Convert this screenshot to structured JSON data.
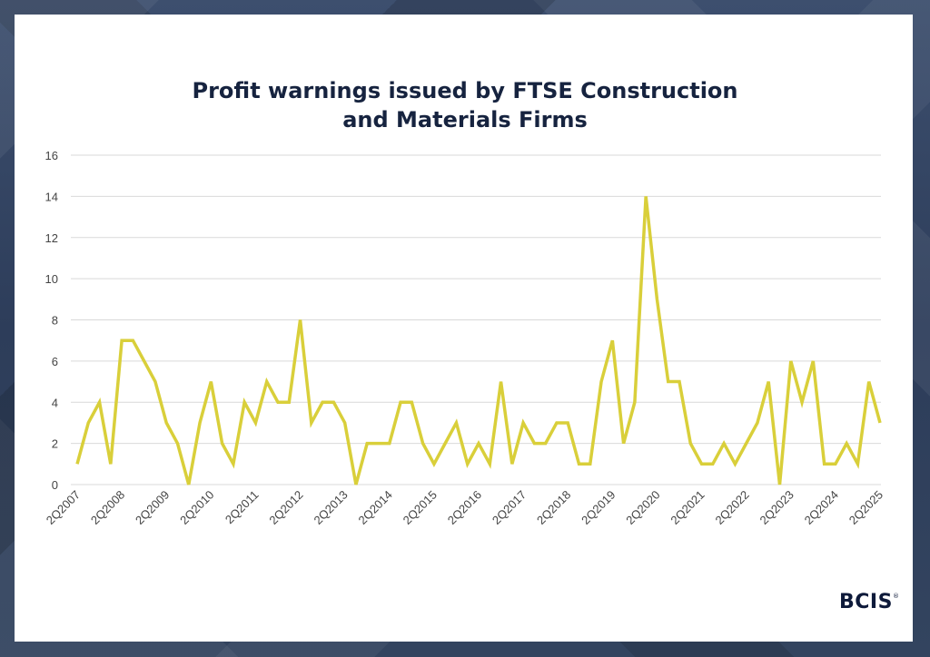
{
  "brand": {
    "logo_text": "BCIS",
    "logo_mark": "®"
  },
  "colors": {
    "line": "#d9cf3a",
    "grid": "#d9d9d9",
    "title": "#16233f",
    "card": "#ffffff"
  },
  "chart_data": {
    "type": "line",
    "title_line1": "Profit warnings issued by FTSE Construction",
    "title_line2": "and Materials Firms",
    "xlabel": "",
    "ylabel": "",
    "ylim": [
      0,
      16
    ],
    "yticks": [
      0,
      2,
      4,
      6,
      8,
      10,
      12,
      14,
      16
    ],
    "grid": true,
    "x_tick_labels": [
      "2Q2007",
      "2Q2008",
      "2Q2009",
      "2Q2010",
      "2Q2011",
      "2Q2012",
      "2Q2013",
      "2Q2014",
      "2Q2015",
      "2Q2016",
      "2Q2017",
      "2Q2018",
      "2Q2019",
      "2Q2020",
      "2Q2021",
      "2Q2022",
      "2Q2023",
      "2Q2024",
      "2Q2025"
    ],
    "series": [
      {
        "values": [
          1,
          3,
          4,
          1,
          7,
          7,
          6,
          5,
          3,
          2,
          0,
          3,
          5,
          2,
          1,
          4,
          3,
          5,
          4,
          4,
          8,
          3,
          4,
          4,
          3,
          0,
          2,
          2,
          2,
          4,
          4,
          2,
          1,
          2,
          3,
          1,
          2,
          1,
          5,
          1,
          3,
          2,
          2,
          3,
          3,
          1,
          1,
          5,
          7,
          2,
          4,
          14,
          9,
          5,
          5,
          2,
          1,
          1,
          2,
          1,
          2,
          3,
          5,
          0,
          6,
          4,
          6,
          1,
          1,
          2,
          1,
          5,
          3
        ]
      }
    ]
  }
}
